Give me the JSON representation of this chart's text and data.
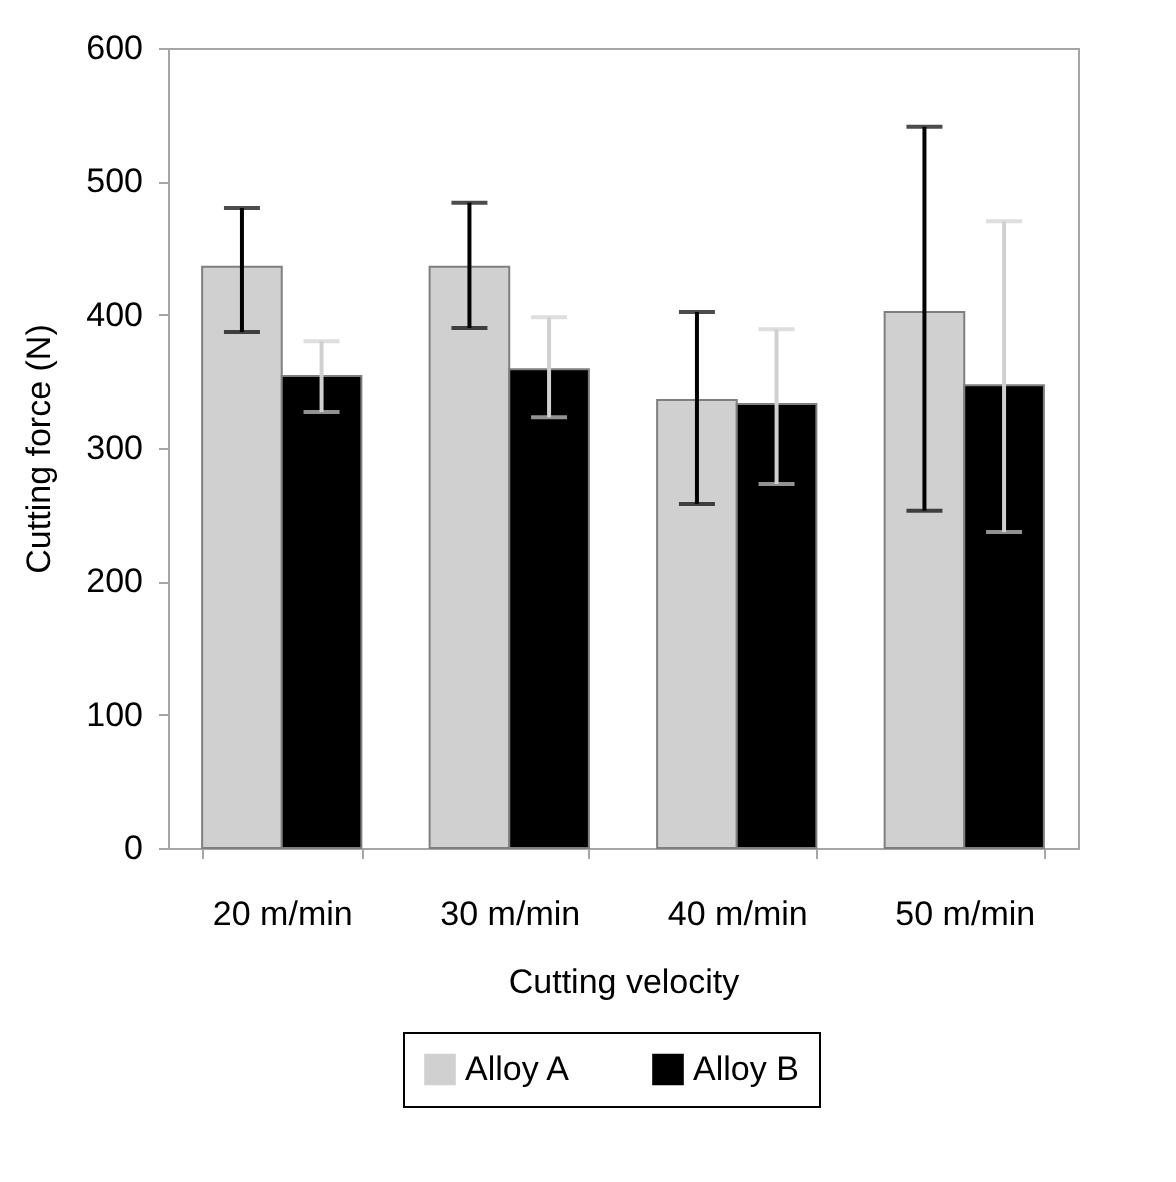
{
  "chart_data": {
    "type": "bar",
    "xlabel": "Cutting velocity",
    "ylabel": "Cutting force (N)",
    "categories": [
      "20 m/min",
      "30 m/min",
      "40 m/min",
      "50 m/min"
    ],
    "series": [
      {
        "name": "Alloy A",
        "color": "#d0d0d0",
        "values": [
          436,
          436,
          336,
          402
        ],
        "errors": [
          [
            387,
            480
          ],
          [
            390,
            484
          ],
          [
            258,
            402
          ],
          [
            253,
            541
          ]
        ]
      },
      {
        "name": "Alloy B",
        "color": "#000000",
        "values": [
          354,
          359,
          333,
          347
        ],
        "errors": [
          [
            327,
            380
          ],
          [
            323,
            398
          ],
          [
            273,
            389
          ],
          [
            237,
            470
          ]
        ]
      }
    ],
    "ylim": [
      0,
      600
    ],
    "yticks": [
      0,
      100,
      200,
      300,
      400,
      500,
      600
    ],
    "grid": false,
    "legend": "bottom"
  }
}
